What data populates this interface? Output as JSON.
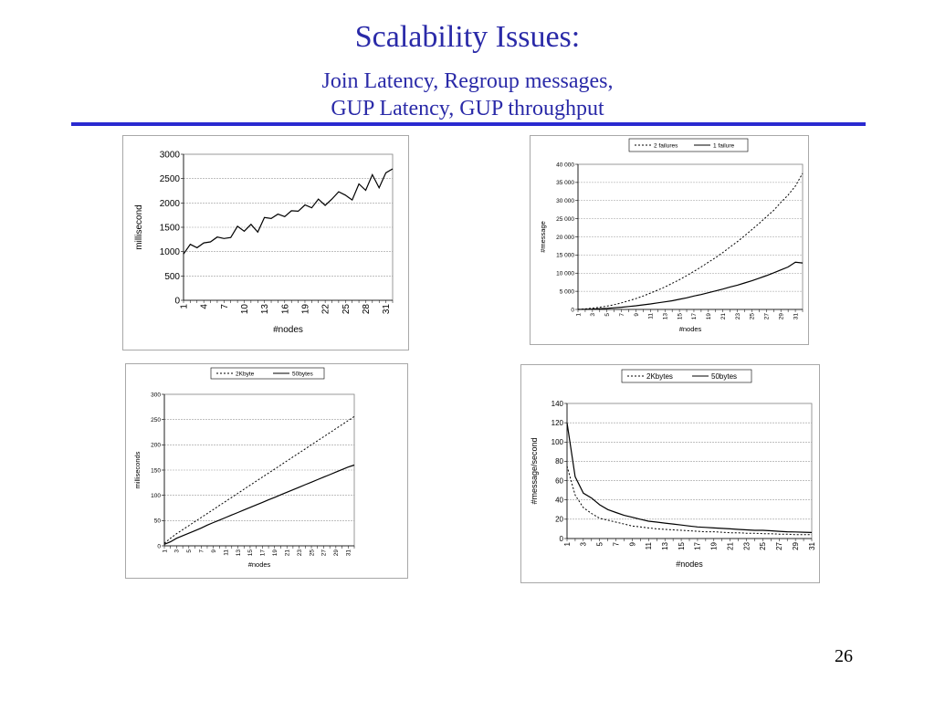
{
  "slide": {
    "title": "Scalability Issues:",
    "subtitle_line1": "Join Latency, Regroup messages,",
    "subtitle_line2": "GUP Latency, GUP throughput",
    "page_number": "26"
  },
  "chart_data": [
    {
      "type": "line",
      "ylabel": "millisecond",
      "xlabel": "#nodes",
      "ylim": [
        0,
        3000
      ],
      "yticks": [
        0,
        500,
        1000,
        1500,
        2000,
        2500,
        3000
      ],
      "ytick_labels": [
        "0",
        "500",
        "1000",
        "1500",
        "2000",
        "2500",
        "3000"
      ],
      "x": [
        1,
        2,
        3,
        4,
        5,
        6,
        7,
        8,
        9,
        10,
        11,
        12,
        13,
        14,
        15,
        16,
        17,
        18,
        19,
        20,
        21,
        22,
        23,
        24,
        25,
        26,
        27,
        28,
        29,
        30,
        31,
        32
      ],
      "xtick_labels": [
        "1",
        "4",
        "7",
        "10",
        "13",
        "16",
        "19",
        "22",
        "25",
        "28",
        "31"
      ],
      "xtick_values": [
        1,
        4,
        7,
        10,
        13,
        16,
        19,
        22,
        25,
        28,
        31
      ],
      "grid": true,
      "legend": "none",
      "series": [
        {
          "dashed": false,
          "values": [
            950,
            1150,
            1080,
            1180,
            1200,
            1300,
            1270,
            1290,
            1520,
            1420,
            1560,
            1400,
            1700,
            1680,
            1770,
            1720,
            1840,
            1830,
            1960,
            1900,
            2080,
            1950,
            2080,
            2230,
            2160,
            2060,
            2390,
            2260,
            2580,
            2310,
            2620,
            2700
          ]
        }
      ]
    },
    {
      "type": "line",
      "ylabel": "#message",
      "xlabel": "#nodes",
      "ylim": [
        0,
        40000
      ],
      "yticks": [
        0,
        5000,
        10000,
        15000,
        20000,
        25000,
        30000,
        35000,
        40000
      ],
      "ytick_labels": [
        "0",
        "5 000",
        "10 000",
        "15 000",
        "20 000",
        "25 000",
        "30 000",
        "35 000",
        "40 000"
      ],
      "x": [
        1,
        2,
        3,
        4,
        5,
        6,
        7,
        8,
        9,
        10,
        11,
        12,
        13,
        14,
        15,
        16,
        17,
        18,
        19,
        20,
        21,
        22,
        23,
        24,
        25,
        26,
        27,
        28,
        29,
        30,
        31,
        32
      ],
      "xtick_labels": [
        "1",
        "3",
        "5",
        "7",
        "9",
        "11",
        "13",
        "15",
        "17",
        "19",
        "21",
        "23",
        "25",
        "27",
        "29",
        "31"
      ],
      "xtick_values": [
        1,
        3,
        5,
        7,
        9,
        11,
        13,
        15,
        17,
        19,
        21,
        23,
        25,
        27,
        29,
        31
      ],
      "grid": true,
      "legend": "top",
      "series": [
        {
          "name": "2 failures",
          "dashed": true,
          "values": [
            0,
            150,
            350,
            600,
            900,
            1300,
            1800,
            2400,
            3000,
            3700,
            4500,
            5300,
            6200,
            7200,
            8200,
            9300,
            10500,
            11700,
            13000,
            14300,
            15700,
            17200,
            18700,
            20300,
            22000,
            23700,
            25500,
            27300,
            29500,
            31500,
            34000,
            37500
          ]
        },
        {
          "name": "1 failure",
          "dashed": false,
          "values": [
            0,
            50,
            100,
            200,
            300,
            450,
            600,
            800,
            1000,
            1250,
            1500,
            1800,
            2100,
            2400,
            2800,
            3200,
            3700,
            4100,
            4600,
            5100,
            5600,
            6200,
            6700,
            7300,
            7900,
            8600,
            9300,
            10100,
            10900,
            11700,
            13000,
            12800
          ]
        }
      ]
    },
    {
      "type": "line",
      "ylabel": "milliseconds",
      "xlabel": "#nodes",
      "ylim": [
        0,
        300
      ],
      "yticks": [
        0,
        50,
        100,
        150,
        200,
        250,
        300
      ],
      "ytick_labels": [
        "0",
        "50",
        "100",
        "150",
        "200",
        "250",
        "300"
      ],
      "x": [
        1,
        2,
        3,
        4,
        5,
        6,
        7,
        8,
        9,
        10,
        11,
        12,
        13,
        14,
        15,
        16,
        17,
        18,
        19,
        20,
        21,
        22,
        23,
        24,
        25,
        26,
        27,
        28,
        29,
        30,
        31,
        32
      ],
      "xtick_labels": [
        "1",
        "3",
        "5",
        "7",
        "9",
        "11",
        "13",
        "15",
        "17",
        "19",
        "21",
        "23",
        "25",
        "27",
        "29",
        "31"
      ],
      "xtick_values": [
        1,
        3,
        5,
        7,
        9,
        11,
        13,
        15,
        17,
        19,
        21,
        23,
        25,
        27,
        29,
        31
      ],
      "grid": true,
      "legend": "top",
      "series": [
        {
          "name": "2Kbyte",
          "dashed": true,
          "values": [
            5,
            15,
            24,
            32,
            40,
            48,
            56,
            64,
            72,
            80,
            88,
            96,
            104,
            112,
            120,
            128,
            136,
            144,
            152,
            160,
            168,
            176,
            184,
            192,
            200,
            208,
            216,
            224,
            232,
            240,
            248,
            256
          ]
        },
        {
          "name": "50bytes",
          "dashed": false,
          "values": [
            3,
            8,
            15,
            20,
            25,
            30,
            35,
            41,
            46,
            51,
            56,
            61,
            66,
            71,
            76,
            81,
            86,
            91,
            96,
            101,
            106,
            111,
            116,
            121,
            126,
            131,
            136,
            141,
            146,
            151,
            156,
            160
          ]
        }
      ]
    },
    {
      "type": "line",
      "ylabel": "#message/second",
      "xlabel": "#nodes",
      "ylim": [
        0,
        140
      ],
      "yticks": [
        0,
        20,
        40,
        60,
        80,
        100,
        120,
        140
      ],
      "ytick_labels": [
        "0",
        "20",
        "40",
        "60",
        "80",
        "100",
        "120",
        "140"
      ],
      "x": [
        1,
        2,
        3,
        4,
        5,
        6,
        7,
        8,
        9,
        10,
        11,
        12,
        13,
        14,
        15,
        16,
        17,
        18,
        19,
        20,
        21,
        22,
        23,
        24,
        25,
        26,
        27,
        28,
        29,
        30,
        31
      ],
      "xtick_labels": [
        "1",
        "3",
        "5",
        "7",
        "9",
        "11",
        "13",
        "15",
        "17",
        "19",
        "21",
        "23",
        "25",
        "27",
        "29",
        "31"
      ],
      "xtick_values": [
        1,
        3,
        5,
        7,
        9,
        11,
        13,
        15,
        17,
        19,
        21,
        23,
        25,
        27,
        29,
        31
      ],
      "grid": true,
      "legend": "top",
      "series": [
        {
          "name": "2Kbytes",
          "dashed": true,
          "values": [
            75,
            45,
            32,
            26,
            21,
            19,
            17,
            15,
            13,
            12,
            11,
            10,
            9.5,
            9,
            8.5,
            8,
            7.5,
            7,
            7,
            6.5,
            6,
            6,
            5.5,
            5.5,
            5,
            5,
            4.5,
            4.5,
            4,
            4,
            4
          ]
        },
        {
          "name": "50bytes",
          "dashed": false,
          "values": [
            120,
            64,
            47,
            42,
            35,
            30,
            27,
            24,
            22,
            20,
            18,
            17,
            16,
            15,
            14,
            13,
            12,
            11.5,
            11,
            10.5,
            10,
            9.5,
            9,
            8.5,
            8.5,
            8,
            7.5,
            7,
            6.8,
            6.5,
            6.2
          ]
        }
      ]
    }
  ]
}
